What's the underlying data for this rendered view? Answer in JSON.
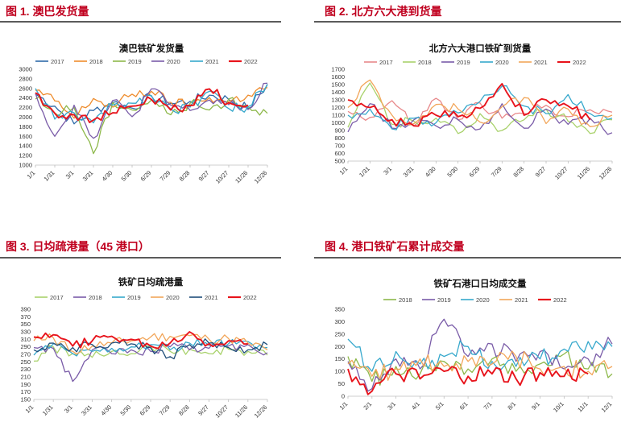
{
  "figures": [
    {
      "label": "图 1. 澳巴发货量"
    },
    {
      "label": "图 2. 北方六大港到货量"
    },
    {
      "label": "图 3. 日均疏港量（45 港口）"
    },
    {
      "label": "图 4. 港口铁矿石累计成交量"
    }
  ],
  "chart_data": [
    {
      "type": "line",
      "title": "澳巴铁矿发货量",
      "categories": [
        "1/1",
        "1/31",
        "3/1",
        "3/31",
        "4/30",
        "5/30",
        "6/29",
        "7/29",
        "8/28",
        "9/27",
        "10/27",
        "11/26",
        "12/26"
      ],
      "yticks": [
        1000,
        1200,
        1400,
        1600,
        1800,
        2000,
        2200,
        2400,
        2600,
        2800,
        3000
      ],
      "ylim": [
        1000,
        3000
      ],
      "legend_position": "top",
      "series": [
        {
          "name": "2017",
          "color": "#2e6aa8",
          "values": [
            2480,
            2230,
            1860,
            2140,
            2310,
            2190,
            2440,
            2290,
            2330,
            2460,
            2370,
            2180,
            2680
          ]
        },
        {
          "name": "2018",
          "color": "#ee8c2d",
          "values": [
            2560,
            2340,
            1980,
            2390,
            2210,
            2480,
            2540,
            2310,
            2250,
            2410,
            2320,
            2460,
            2620
          ]
        },
        {
          "name": "2019",
          "color": "#8db84a",
          "values": [
            2380,
            2090,
            2200,
            1240,
            2310,
            2150,
            2360,
            2050,
            2290,
            2150,
            2380,
            2220,
            2080
          ]
        },
        {
          "name": "2020",
          "color": "#7a5ca8",
          "values": [
            2500,
            1600,
            2250,
            1560,
            2350,
            2010,
            2590,
            2250,
            2140,
            2360,
            2260,
            2160,
            2710
          ]
        },
        {
          "name": "2021",
          "color": "#36a8cc",
          "values": [
            2600,
            1960,
            2090,
            1880,
            2250,
            2290,
            2450,
            2170,
            2210,
            2540,
            2180,
            2220,
            2690
          ]
        },
        {
          "name": "2022",
          "color": "#e8141c",
          "values": [
            2510,
            2080,
            2050,
            1940,
            2090,
            2230,
            2370,
            2150,
            2240,
            2590,
            2300,
            2250,
            null
          ]
        }
      ]
    },
    {
      "type": "line",
      "title": "北方六大港口铁矿到货量",
      "categories": [
        "1/1",
        "1/31",
        "3/1",
        "3/31",
        "4/30",
        "5/30",
        "6/29",
        "7/29",
        "8/28",
        "9/27",
        "10/27",
        "11/26",
        "12/26"
      ],
      "yticks": [
        500,
        600,
        700,
        800,
        900,
        1000,
        1100,
        1200,
        1300,
        1400,
        1500,
        1600,
        1700
      ],
      "ylim": [
        500,
        1700
      ],
      "legend_position": "top",
      "series": [
        {
          "name": "2017",
          "color": "#e8888a",
          "values": [
            1150,
            1070,
            1290,
            960,
            1320,
            1040,
            1260,
            1060,
            1120,
            1230,
            1080,
            1170,
            1140
          ]
        },
        {
          "name": "2018",
          "color": "#a9d26c",
          "values": [
            940,
            1520,
            980,
            1020,
            1060,
            860,
            1120,
            900,
            1040,
            1180,
            1020,
            860,
            1040
          ]
        },
        {
          "name": "2019",
          "color": "#7a5ca8",
          "values": [
            880,
            1250,
            930,
            1040,
            960,
            1040,
            920,
            1250,
            930,
            1180,
            980,
            1060,
            870
          ]
        },
        {
          "name": "2020",
          "color": "#36a8cc",
          "values": [
            1100,
            1180,
            920,
            1060,
            1000,
            1130,
            1280,
            1480,
            1220,
            1120,
            1370,
            1120,
            1060
          ]
        },
        {
          "name": "2021",
          "color": "#f2a65a",
          "values": [
            1200,
            1560,
            1100,
            990,
            1240,
            1180,
            1010,
            1210,
            1330,
            990,
            1180,
            950,
            1100
          ]
        },
        {
          "name": "2022",
          "color": "#e8141c",
          "values": [
            1300,
            1200,
            1040,
            960,
            1100,
            1080,
            1190,
            1510,
            1100,
            1300,
            1220,
            1040,
            null
          ]
        }
      ]
    },
    {
      "type": "line",
      "title": "铁矿日均疏港量",
      "categories": [
        "1/1",
        "1/31",
        "3/1",
        "3/31",
        "4/30",
        "5/30",
        "6/29",
        "7/29",
        "8/28",
        "9/27",
        "10/27",
        "11/26",
        "12/26"
      ],
      "yticks": [
        150,
        170,
        190,
        210,
        230,
        250,
        270,
        290,
        310,
        330,
        350,
        370,
        390
      ],
      "ylim": [
        150,
        390
      ],
      "legend_position": "top",
      "series": [
        {
          "name": "2017",
          "color": "#a9d26c",
          "values": [
            252,
            290,
            272,
            262,
            278,
            272,
            290,
            278,
            284,
            272,
            284,
            278,
            268
          ]
        },
        {
          "name": "2018",
          "color": "#7a5ca8",
          "values": [
            288,
            286,
            198,
            282,
            272,
            282,
            278,
            290,
            282,
            286,
            292,
            296,
            274
          ]
        },
        {
          "name": "2019",
          "color": "#36a8cc",
          "values": [
            268,
            298,
            272,
            278,
            286,
            290,
            296,
            282,
            300,
            294,
            298,
            304,
            288
          ]
        },
        {
          "name": "2020",
          "color": "#f2a65a",
          "values": [
            306,
            314,
            278,
            292,
            300,
            306,
            316,
            318,
            320,
            310,
            312,
            300,
            282
          ]
        },
        {
          "name": "2021",
          "color": "#1f4e79",
          "values": [
            282,
            300,
            288,
            296,
            300,
            298,
            288,
            264,
            296,
            300,
            288,
            282,
            296
          ]
        },
        {
          "name": "2022",
          "color": "#e8141c",
          "values": [
            316,
            322,
            292,
            306,
            318,
            310,
            292,
            300,
            330,
            298,
            306,
            298,
            null
          ]
        }
      ]
    },
    {
      "type": "line",
      "title": "铁矿石港口日均成交量",
      "categories": [
        "1/1",
        "2/1",
        "3/1",
        "4/1",
        "5/1",
        "6/1",
        "7/1",
        "8/1",
        "9/1",
        "10/1",
        "11/1",
        "12/1"
      ],
      "yticks": [
        0,
        50,
        100,
        150,
        200,
        250,
        300,
        350
      ],
      "ylim": [
        0,
        350
      ],
      "legend_position": "top",
      "series": [
        {
          "name": "2018",
          "color": "#8db84a",
          "values": [
            160,
            60,
            120,
            90,
            140,
            110,
            150,
            100,
            130,
            170,
            110,
            90
          ]
        },
        {
          "name": "2019",
          "color": "#7a5ca8",
          "values": [
            140,
            30,
            150,
            110,
            310,
            160,
            210,
            140,
            180,
            110,
            150,
            210
          ]
        },
        {
          "name": "2020",
          "color": "#36a8cc",
          "values": [
            230,
            100,
            180,
            130,
            160,
            200,
            140,
            120,
            150,
            190,
            220,
            200
          ]
        },
        {
          "name": "2021",
          "color": "#f2a65a",
          "values": [
            130,
            80,
            110,
            150,
            120,
            140,
            130,
            160,
            110,
            120,
            100,
            120
          ]
        },
        {
          "name": "2022",
          "color": "#e8141c",
          "values": [
            110,
            20,
            90,
            70,
            100,
            80,
            90,
            70,
            95,
            80,
            90,
            null
          ]
        }
      ]
    }
  ]
}
